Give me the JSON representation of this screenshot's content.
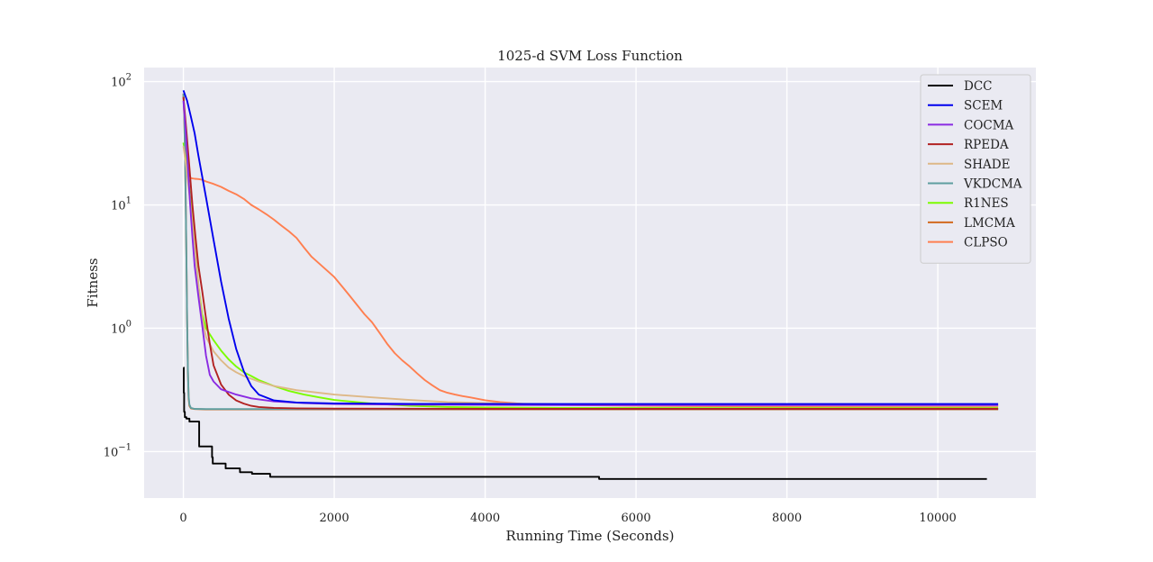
{
  "chart_data": {
    "type": "line",
    "title": "1025-d SVM Loss Function",
    "xlabel": "Running Time (Seconds)",
    "ylabel": "Fitness",
    "xlim": [
      -520,
      11300
    ],
    "ylim": [
      0.042,
      130
    ],
    "yscale": "log",
    "x_ticks": [
      0,
      2000,
      4000,
      6000,
      8000,
      10000
    ],
    "y_ticks": [
      {
        "value": 100,
        "base": "10",
        "exp": "2"
      },
      {
        "value": 10,
        "base": "10",
        "exp": "1"
      },
      {
        "value": 1,
        "base": "10",
        "exp": "0"
      },
      {
        "value": 0.1,
        "base": "10",
        "exp": "−1"
      }
    ],
    "grid": true,
    "legend_position": "top-right",
    "series": [
      {
        "name": "DCC",
        "color": "#000000",
        "step": true,
        "points": [
          [
            0,
            0.48
          ],
          [
            5,
            0.3
          ],
          [
            10,
            0.21
          ],
          [
            20,
            0.19
          ],
          [
            40,
            0.185
          ],
          [
            80,
            0.175
          ],
          [
            150,
            0.175
          ],
          [
            200,
            0.175
          ],
          [
            210,
            0.11
          ],
          [
            250,
            0.11
          ],
          [
            370,
            0.11
          ],
          [
            380,
            0.09
          ],
          [
            390,
            0.08
          ],
          [
            550,
            0.08
          ],
          [
            560,
            0.073
          ],
          [
            740,
            0.073
          ],
          [
            750,
            0.068
          ],
          [
            900,
            0.068
          ],
          [
            910,
            0.066
          ],
          [
            1140,
            0.066
          ],
          [
            1150,
            0.0625
          ],
          [
            2000,
            0.0625
          ],
          [
            4000,
            0.0625
          ],
          [
            5500,
            0.0625
          ],
          [
            5510,
            0.06
          ],
          [
            8000,
            0.06
          ],
          [
            10650,
            0.06
          ]
        ]
      },
      {
        "name": "SCEM",
        "color": "#0000ee",
        "points": [
          [
            0,
            85
          ],
          [
            50,
            70
          ],
          [
            100,
            52
          ],
          [
            150,
            38
          ],
          [
            200,
            25
          ],
          [
            300,
            11.5
          ],
          [
            400,
            5.2
          ],
          [
            500,
            2.4
          ],
          [
            600,
            1.2
          ],
          [
            700,
            0.68
          ],
          [
            800,
            0.45
          ],
          [
            900,
            0.34
          ],
          [
            1000,
            0.29
          ],
          [
            1200,
            0.26
          ],
          [
            1500,
            0.25
          ],
          [
            2000,
            0.246
          ],
          [
            3000,
            0.244
          ],
          [
            5000,
            0.243
          ],
          [
            8000,
            0.243
          ],
          [
            10800,
            0.243
          ]
        ]
      },
      {
        "name": "COCMA",
        "color": "#8a2be2",
        "points": [
          [
            0,
            70
          ],
          [
            30,
            40
          ],
          [
            60,
            20
          ],
          [
            90,
            10
          ],
          [
            120,
            5.5
          ],
          [
            150,
            3.2
          ],
          [
            200,
            1.8
          ],
          [
            250,
            1.05
          ],
          [
            300,
            0.6
          ],
          [
            350,
            0.42
          ],
          [
            400,
            0.37
          ],
          [
            500,
            0.32
          ],
          [
            700,
            0.29
          ],
          [
            900,
            0.27
          ],
          [
            1200,
            0.255
          ],
          [
            1600,
            0.247
          ],
          [
            2000,
            0.243
          ],
          [
            3000,
            0.24
          ],
          [
            5000,
            0.238
          ],
          [
            8000,
            0.238
          ],
          [
            10800,
            0.238
          ]
        ]
      },
      {
        "name": "RPEDA",
        "color": "#b22222",
        "points": [
          [
            0,
            75
          ],
          [
            40,
            40
          ],
          [
            80,
            20
          ],
          [
            120,
            10
          ],
          [
            160,
            5.5
          ],
          [
            200,
            3.2
          ],
          [
            250,
            2.0
          ],
          [
            300,
            1.2
          ],
          [
            350,
            0.75
          ],
          [
            400,
            0.5
          ],
          [
            500,
            0.35
          ],
          [
            600,
            0.29
          ],
          [
            700,
            0.26
          ],
          [
            800,
            0.245
          ],
          [
            900,
            0.235
          ],
          [
            1000,
            0.23
          ],
          [
            1200,
            0.226
          ],
          [
            1500,
            0.224
          ],
          [
            2000,
            0.223
          ],
          [
            4000,
            0.222
          ],
          [
            10800,
            0.222
          ]
        ]
      },
      {
        "name": "SHADE",
        "color": "#deb887",
        "points": [
          [
            0,
            30
          ],
          [
            40,
            20
          ],
          [
            80,
            12
          ],
          [
            120,
            7
          ],
          [
            160,
            4
          ],
          [
            200,
            2.2
          ],
          [
            250,
            1.2
          ],
          [
            300,
            0.85
          ],
          [
            400,
            0.65
          ],
          [
            500,
            0.55
          ],
          [
            600,
            0.48
          ],
          [
            700,
            0.44
          ],
          [
            800,
            0.41
          ],
          [
            1000,
            0.37
          ],
          [
            1200,
            0.34
          ],
          [
            1500,
            0.315
          ],
          [
            2000,
            0.29
          ],
          [
            2500,
            0.275
          ],
          [
            3000,
            0.262
          ],
          [
            3500,
            0.252
          ],
          [
            4000,
            0.247
          ],
          [
            5000,
            0.242
          ],
          [
            7000,
            0.238
          ],
          [
            10800,
            0.235
          ]
        ]
      },
      {
        "name": "VKDCMA",
        "color": "#5f9ea0",
        "points": [
          [
            0,
            80
          ],
          [
            10,
            60
          ],
          [
            20,
            30
          ],
          [
            30,
            12
          ],
          [
            40,
            4
          ],
          [
            50,
            1.2
          ],
          [
            60,
            0.45
          ],
          [
            70,
            0.28
          ],
          [
            80,
            0.24
          ],
          [
            100,
            0.226
          ],
          [
            150,
            0.222
          ],
          [
            300,
            0.221
          ],
          [
            1000,
            0.221
          ],
          [
            10800,
            0.221
          ]
        ]
      },
      {
        "name": "R1NES",
        "color": "#7cfc00",
        "points": [
          [
            0,
            32
          ],
          [
            30,
            25
          ],
          [
            60,
            18
          ],
          [
            100,
            10
          ],
          [
            150,
            5
          ],
          [
            200,
            2.2
          ],
          [
            250,
            1.3
          ],
          [
            300,
            1.0
          ],
          [
            400,
            0.8
          ],
          [
            500,
            0.66
          ],
          [
            600,
            0.56
          ],
          [
            700,
            0.49
          ],
          [
            800,
            0.44
          ],
          [
            900,
            0.41
          ],
          [
            1000,
            0.38
          ],
          [
            1200,
            0.34
          ],
          [
            1400,
            0.31
          ],
          [
            1600,
            0.29
          ],
          [
            1800,
            0.275
          ],
          [
            2000,
            0.262
          ],
          [
            2500,
            0.245
          ],
          [
            3000,
            0.235
          ],
          [
            3500,
            0.23
          ],
          [
            4000,
            0.228
          ],
          [
            5000,
            0.226
          ],
          [
            8000,
            0.225
          ],
          [
            10800,
            0.225
          ]
        ]
      },
      {
        "name": "LMCMA",
        "color": "#d2691e",
        "points": [
          [
            0,
            80
          ],
          [
            10,
            55
          ],
          [
            20,
            30
          ],
          [
            30,
            12
          ],
          [
            40,
            4
          ],
          [
            50,
            1.2
          ],
          [
            60,
            0.45
          ],
          [
            70,
            0.27
          ],
          [
            80,
            0.235
          ],
          [
            100,
            0.224
          ],
          [
            150,
            0.221
          ],
          [
            300,
            0.22
          ],
          [
            1000,
            0.22
          ],
          [
            10800,
            0.22
          ]
        ]
      },
      {
        "name": "CLPSO",
        "color": "#ff7f50",
        "points": [
          [
            0,
            80
          ],
          [
            20,
            40
          ],
          [
            40,
            25
          ],
          [
            70,
            18
          ],
          [
            100,
            16.5
          ],
          [
            150,
            16.3
          ],
          [
            200,
            16.2
          ],
          [
            250,
            16
          ],
          [
            300,
            15.5
          ],
          [
            400,
            14.8
          ],
          [
            500,
            14
          ],
          [
            600,
            13
          ],
          [
            700,
            12.2
          ],
          [
            800,
            11.2
          ],
          [
            900,
            10
          ],
          [
            1000,
            9.2
          ],
          [
            1100,
            8.4
          ],
          [
            1200,
            7.6
          ],
          [
            1300,
            6.8
          ],
          [
            1400,
            6.1
          ],
          [
            1500,
            5.4
          ],
          [
            1600,
            4.5
          ],
          [
            1700,
            3.8
          ],
          [
            1800,
            3.35
          ],
          [
            1900,
            2.95
          ],
          [
            2000,
            2.6
          ],
          [
            2100,
            2.2
          ],
          [
            2200,
            1.85
          ],
          [
            2300,
            1.55
          ],
          [
            2400,
            1.3
          ],
          [
            2500,
            1.12
          ],
          [
            2600,
            0.92
          ],
          [
            2700,
            0.75
          ],
          [
            2800,
            0.63
          ],
          [
            2900,
            0.55
          ],
          [
            3000,
            0.49
          ],
          [
            3100,
            0.43
          ],
          [
            3200,
            0.38
          ],
          [
            3300,
            0.345
          ],
          [
            3400,
            0.315
          ],
          [
            3500,
            0.3
          ],
          [
            3600,
            0.29
          ],
          [
            3700,
            0.282
          ],
          [
            3800,
            0.275
          ],
          [
            3900,
            0.268
          ],
          [
            4000,
            0.261
          ],
          [
            4200,
            0.252
          ],
          [
            4500,
            0.244
          ],
          [
            5000,
            0.239
          ],
          [
            6000,
            0.235
          ],
          [
            8000,
            0.232
          ],
          [
            10800,
            0.231
          ]
        ]
      }
    ]
  }
}
